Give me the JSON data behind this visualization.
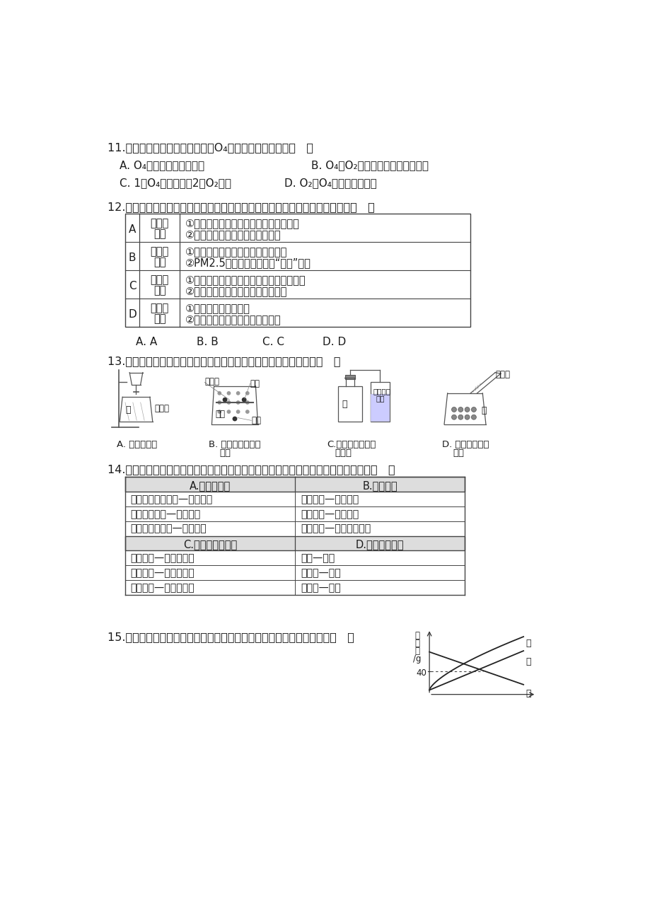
{
  "bg_color": "#ffffff",
  "text_color": "#1a1a1a",
  "q11_text": "11.科学家已研制出新型的氧分子O₄，对其说法正确的是（   ）",
  "q11_a": "A. O₄是一种新型的化合物",
  "q11_b": "B. O₄和O₂都是由氧元素组成的单质",
  "q11_c": "C. 1个O₄分子中含有2个O₂分子",
  "q11_d": "D. O₂与O₄的性质一定相同",
  "q12_text": "12.化学与人类的生活息息相关，下列对部分化学知识的归纳完全正确的一组是（   ）",
  "q12_rows": [
    [
      "A",
      "化学与\n生活",
      "①生活中常用加热煮沸的方法将硬水软化",
      "②用燃烧的方法可区分羊毛和涤纶"
    ],
    [
      "B",
      "化学与\n环境",
      "①使用化石燃料不会对环境产生影响",
      "②PM2.5是造成灰霾天气的“元凶”之一"
    ],
    [
      "C",
      "化学与\n安全",
      "①图书、档案着火，要用水基型灭火器灭火",
      "②在室内放一盆水，可防止煤气中毒"
    ],
    [
      "D",
      "化学与\n健康",
      "①人体缺铁会引起贫血",
      "②用甲醛的水溶液浸泡海产品保鲜"
    ]
  ],
  "q13_text": "13.下图是某兴趣小组设计的四个实验装置，其中实验能够成功的是（   ）",
  "q14_text": "14.下面是某同学用连线的方式对某一主题知识进行归纳的情况，其中有错误的一组是（   ）",
  "q14_ab_rows": [
    [
      "一氧化碳有还原性—冶炼金属",
      "油锅着火—用水浇灭"
    ],
    [
      "乙醇有可燃性—用做燃料",
      "煤气泄露—严禁火种"
    ],
    [
      "活性炭有吸附性—做净水剂",
      "溶洞探险—须做灯火实验"
    ]
  ],
  "q14_cd_rows": [
    [
      "人体缺铁—易患贫血症",
      "雨水—酸性"
    ],
    [
      "人体缺钙—易患佝偻病",
      "肥皂水—碱性"
    ],
    [
      "人体缺碘—甲状腺肿大",
      "蒸馏水—中性"
    ]
  ],
  "q15_text": "15.右下图是甲、乙、丙三种固体物质的溶解度曲线，下列说法错误的是（   ）"
}
